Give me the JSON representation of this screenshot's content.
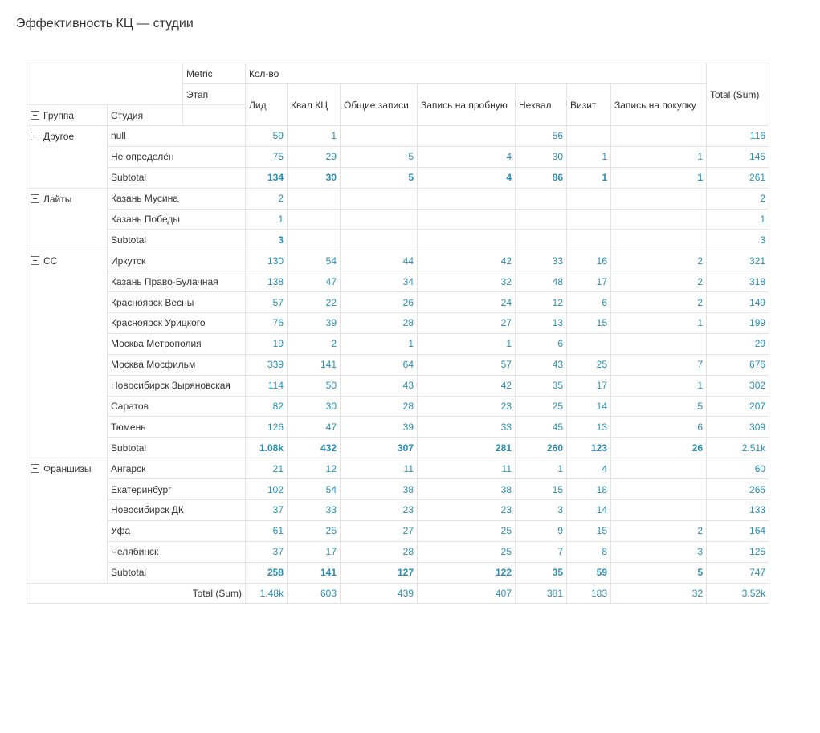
{
  "title": "Эффективность КЦ — студии",
  "header": {
    "metric_label": "Metric",
    "metric": "Кол-во",
    "stage_label": "Этап",
    "stages": [
      "Лид",
      "Квал КЦ",
      "Общие записи",
      "Запись на пробную",
      "Неквал",
      "Визит",
      "Запись на покупку"
    ],
    "total": "Total (Sum)",
    "group_label": "Группа",
    "studio_label": "Студия"
  },
  "groups": [
    {
      "name": "Другое",
      "rows": [
        {
          "studio": "null",
          "values": [
            59,
            1,
            null,
            null,
            56,
            null,
            null
          ],
          "total": 116
        },
        {
          "studio": "Не определён",
          "values": [
            75,
            29,
            5,
            4,
            30,
            1,
            1
          ],
          "total": 145
        }
      ],
      "subtotal": {
        "label": "Subtotal",
        "values": [
          134,
          30,
          5,
          4,
          86,
          1,
          1
        ],
        "total": 261
      }
    },
    {
      "name": "Лайты",
      "rows": [
        {
          "studio": "Казань Мусина",
          "values": [
            2,
            null,
            null,
            null,
            null,
            null,
            null
          ],
          "total": 2
        },
        {
          "studio": "Казань Победы",
          "values": [
            1,
            null,
            null,
            null,
            null,
            null,
            null
          ],
          "total": 1
        }
      ],
      "subtotal": {
        "label": "Subtotal",
        "values": [
          3,
          null,
          null,
          null,
          null,
          null,
          null
        ],
        "total": 3
      }
    },
    {
      "name": "СС",
      "rows": [
        {
          "studio": "Иркутск",
          "values": [
            130,
            54,
            44,
            42,
            33,
            16,
            2
          ],
          "total": 321
        },
        {
          "studio": "Казань Право-Булачная",
          "values": [
            138,
            47,
            34,
            32,
            48,
            17,
            2
          ],
          "total": 318
        },
        {
          "studio": "Красноярск Весны",
          "values": [
            57,
            22,
            26,
            24,
            12,
            6,
            2
          ],
          "total": 149
        },
        {
          "studio": "Красноярск Урицкого",
          "values": [
            76,
            39,
            28,
            27,
            13,
            15,
            1
          ],
          "total": 199
        },
        {
          "studio": "Москва Метрополия",
          "values": [
            19,
            2,
            1,
            1,
            6,
            null,
            null
          ],
          "total": 29
        },
        {
          "studio": "Москва Мосфильм",
          "values": [
            339,
            141,
            64,
            57,
            43,
            25,
            7
          ],
          "total": 676
        },
        {
          "studio": "Новосибирск Зыряновская",
          "values": [
            114,
            50,
            43,
            42,
            35,
            17,
            1
          ],
          "total": 302
        },
        {
          "studio": "Саратов",
          "values": [
            82,
            30,
            28,
            23,
            25,
            14,
            5
          ],
          "total": 207
        },
        {
          "studio": "Тюмень",
          "values": [
            126,
            47,
            39,
            33,
            45,
            13,
            6
          ],
          "total": 309
        }
      ],
      "subtotal": {
        "label": "Subtotal",
        "values": [
          "1.08k",
          432,
          307,
          281,
          260,
          123,
          26
        ],
        "total": "2.51k"
      }
    },
    {
      "name": "Франшизы",
      "rows": [
        {
          "studio": "Ангарск",
          "values": [
            21,
            12,
            11,
            11,
            1,
            4,
            null
          ],
          "total": 60
        },
        {
          "studio": "Екатеринбург",
          "values": [
            102,
            54,
            38,
            38,
            15,
            18,
            null
          ],
          "total": 265
        },
        {
          "studio": "Новосибирск ДК",
          "values": [
            37,
            33,
            23,
            23,
            3,
            14,
            null
          ],
          "total": 133
        },
        {
          "studio": "Уфа",
          "values": [
            61,
            25,
            27,
            25,
            9,
            15,
            2
          ],
          "total": 164
        },
        {
          "studio": "Челябинск",
          "values": [
            37,
            17,
            28,
            25,
            7,
            8,
            3
          ],
          "total": 125
        }
      ],
      "subtotal": {
        "label": "Subtotal",
        "values": [
          258,
          141,
          127,
          122,
          35,
          59,
          5
        ],
        "total": 747
      }
    }
  ],
  "grand_total": {
    "label": "Total (Sum)",
    "values": [
      "1.48k",
      603,
      439,
      407,
      381,
      183,
      32
    ],
    "total": "3.52k"
  }
}
